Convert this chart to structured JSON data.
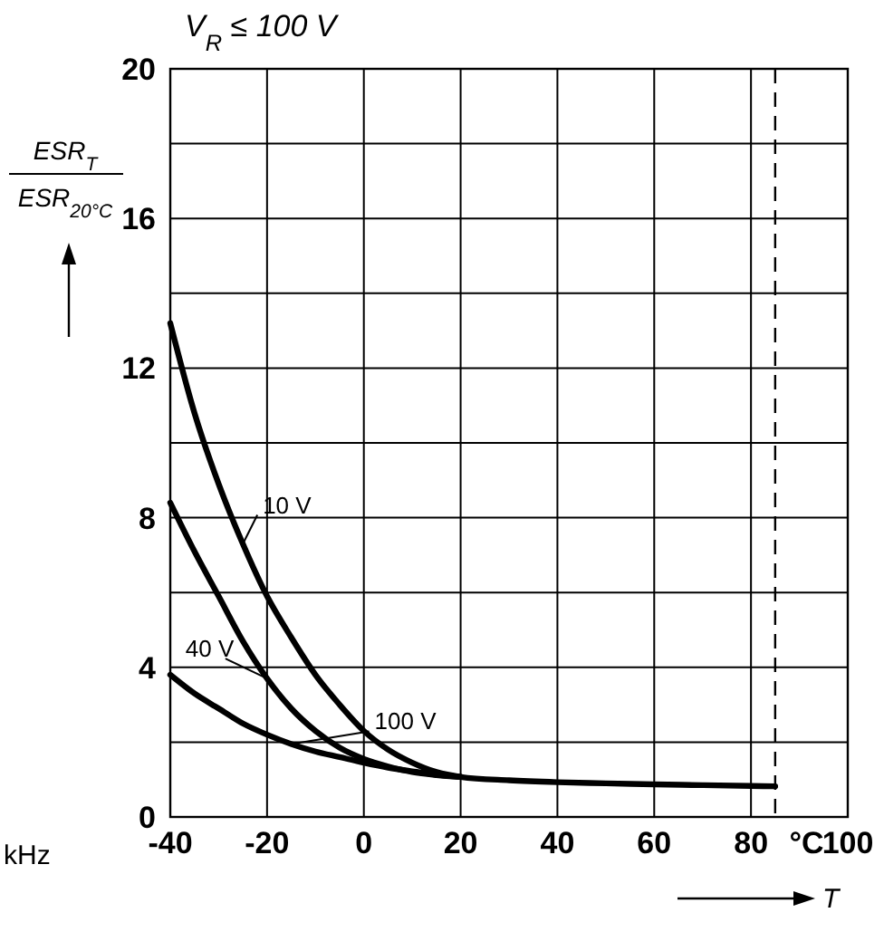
{
  "chart_data": {
    "type": "line",
    "title": "V$_{R}$ ≤ 100 V",
    "xlabel": "T",
    "ylabel": "ESR$_{T}$\nESR$_{20°C}$",
    "xlim": [
      -40,
      100
    ],
    "xticks": [
      -40,
      -20,
      0,
      20,
      40,
      60,
      80,
      100
    ],
    "ylim": [
      0,
      20
    ],
    "yticks": [
      0,
      {
        "value": 2,
        "label": null
      },
      4,
      {
        "value": 6,
        "label": null
      },
      8,
      {
        "value": 10,
        "label": null
      },
      12,
      {
        "value": 14,
        "label": null
      },
      16,
      {
        "value": 18,
        "label": null
      },
      20
    ],
    "grid": true,
    "legend": "left",
    "marker": "none",
    "line_style": "solid",
    "series": [
      {
        "name": "10 V",
        "color": "#000000",
        "x": [
          -40,
          -35,
          -30,
          -25,
          -20,
          -15,
          -10,
          -5,
          0,
          5,
          10,
          15,
          20,
          30,
          40,
          50,
          60,
          70,
          80,
          85
        ],
        "values": [
          13.2,
          10.8,
          8.9,
          7.3,
          5.9,
          4.8,
          3.8,
          3.0,
          2.3,
          1.8,
          1.45,
          1.2,
          1.07,
          0.98,
          0.93,
          0.9,
          0.87,
          0.85,
          0.83,
          0.82
        ]
      },
      {
        "name": "40 V",
        "color": "#000000",
        "x": [
          -40,
          -35,
          -30,
          -25,
          -20,
          -15,
          -10,
          -5,
          0,
          5,
          10,
          15,
          20
        ],
        "values": [
          8.4,
          7.1,
          5.9,
          4.7,
          3.7,
          2.9,
          2.3,
          1.85,
          1.55,
          1.35,
          1.2,
          1.12,
          1.07
        ]
      },
      {
        "name": "100 V",
        "color": "#000000",
        "x": [
          -40,
          -35,
          -30,
          -25,
          -20,
          -15,
          -10,
          -5,
          0,
          5,
          10,
          15,
          20
        ],
        "values": [
          3.8,
          3.3,
          2.9,
          2.5,
          2.2,
          1.95,
          1.75,
          1.6,
          1.45,
          1.32,
          1.22,
          1.13,
          1.07
        ]
      }
    ],
    "ref_lines": [
      {
        "axis": "x",
        "value": 85,
        "label": null,
        "line_style": "dashed",
        "color": "#000000"
      }
    ],
    "annotations": [
      "°C",
      "kHz"
    ]
  }
}
